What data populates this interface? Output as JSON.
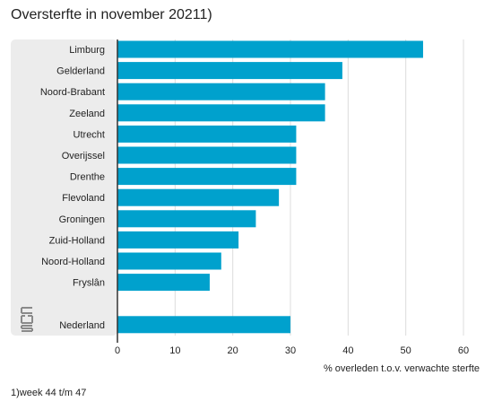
{
  "title": "Oversterfte in november 2021",
  "title_superscript": "1)",
  "footnote": "1)week 44 t/m 47",
  "logo": {
    "icon": "cbs-logo-icon"
  },
  "colors": {
    "bar": "#00a1cd",
    "panel": "#ececec",
    "grid": "#dcdcdc",
    "axis": "#333333"
  },
  "chart_data": {
    "type": "bar",
    "orientation": "horizontal",
    "categories": [
      "Limburg",
      "Gelderland",
      "Noord-Brabant",
      "Zeeland",
      "Utrecht",
      "Overijssel",
      "Drenthe",
      "Flevoland",
      "Groningen",
      "Zuid-Holland",
      "Noord-Holland",
      "Fryslân",
      "Nederland"
    ],
    "values": [
      53,
      39,
      36,
      36,
      31,
      31,
      31,
      28,
      24,
      21,
      18,
      16,
      30
    ],
    "xlabel": "% overleden t.o.v. verwachte sterfte",
    "xlim": [
      0,
      60
    ],
    "xticks": [
      0,
      10,
      20,
      30,
      40,
      50,
      60
    ],
    "grid": true
  }
}
